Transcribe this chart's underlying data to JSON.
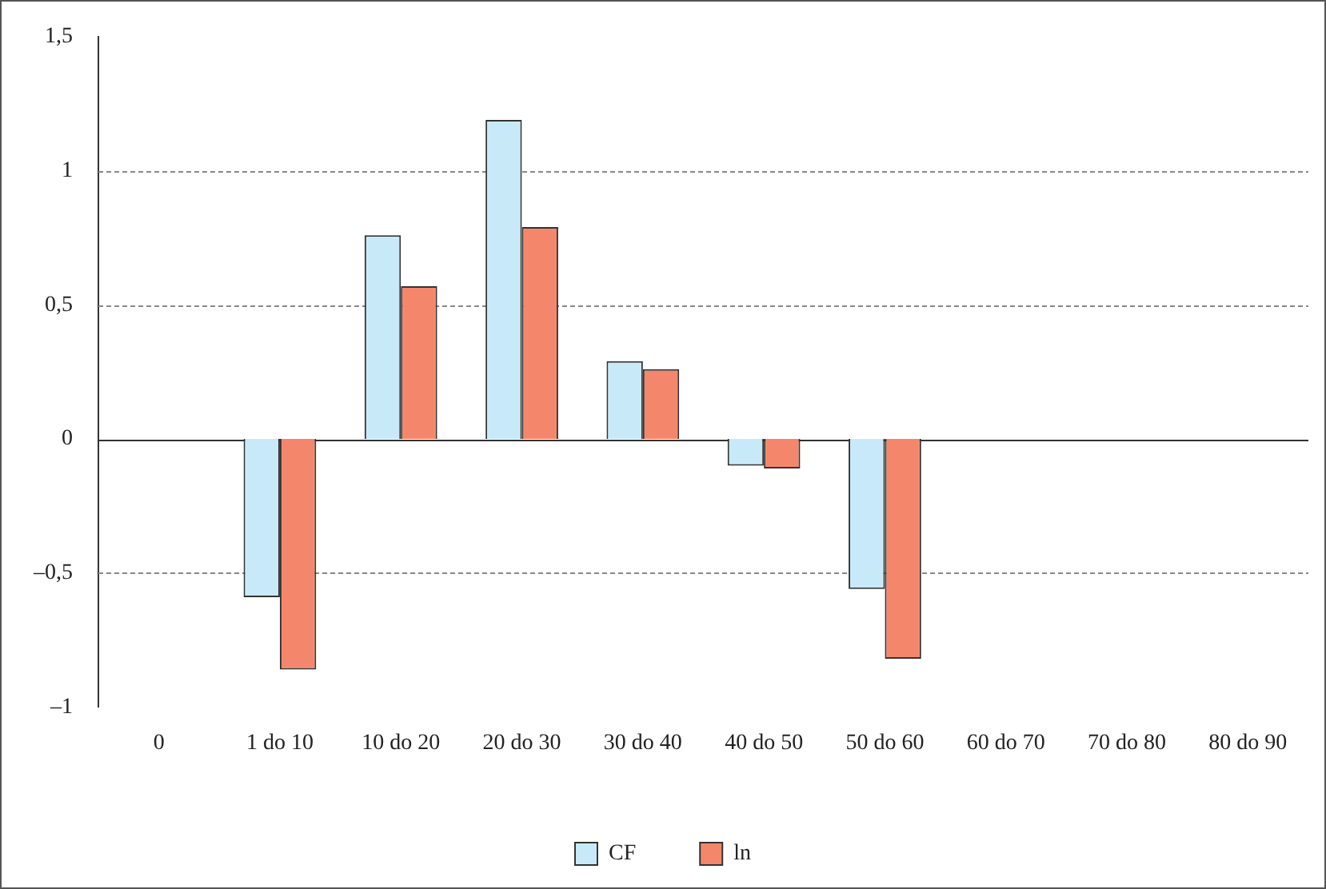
{
  "chart_data": {
    "type": "bar",
    "categories": [
      "0",
      "1 do 10",
      "10 do 20",
      "20 do 30",
      "30 do 40",
      "40 do 50",
      "50 do 60",
      "60 do 70",
      "70 do 80",
      "80 do 90"
    ],
    "series": [
      {
        "name": "CF",
        "color": "#c8eaf8",
        "values": [
          null,
          -0.59,
          0.76,
          1.19,
          0.29,
          -0.1,
          -0.56,
          null,
          null,
          null
        ]
      },
      {
        "name": "ln",
        "color": "#f4876b",
        "values": [
          null,
          -0.86,
          0.57,
          0.79,
          0.26,
          -0.11,
          -0.82,
          null,
          null,
          null
        ]
      }
    ],
    "ylim": [
      -1,
      1.5
    ],
    "yticks": [
      {
        "value": -1,
        "label": "–1"
      },
      {
        "value": -0.5,
        "label": "–0,5"
      },
      {
        "value": 0,
        "label": "0"
      },
      {
        "value": 0.5,
        "label": "0,5"
      },
      {
        "value": 1,
        "label": "1"
      },
      {
        "value": 1.5,
        "label": "1,5"
      }
    ],
    "grid": "y",
    "legend": "bottom"
  }
}
